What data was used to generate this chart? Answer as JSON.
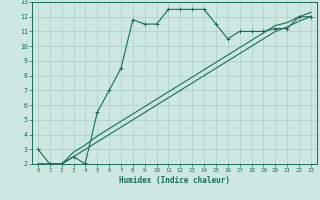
{
  "xlabel": "Humidex (Indice chaleur)",
  "xlim": [
    -0.5,
    23.5
  ],
  "ylim": [
    2,
    13
  ],
  "xticks": [
    0,
    1,
    2,
    3,
    4,
    5,
    6,
    7,
    8,
    9,
    10,
    11,
    12,
    13,
    14,
    15,
    16,
    17,
    18,
    19,
    20,
    21,
    22,
    23
  ],
  "yticks": [
    2,
    3,
    4,
    5,
    6,
    7,
    8,
    9,
    10,
    11,
    12,
    13
  ],
  "bg_color": "#cce8e0",
  "line_color": "#1a6b5c",
  "grid_color": "#aacfc7",
  "line1_x": [
    0,
    1,
    2,
    3,
    4,
    4,
    5,
    6,
    7,
    8,
    9,
    10,
    11,
    12,
    13,
    14,
    15,
    16,
    17,
    18,
    19,
    20,
    21,
    22,
    23
  ],
  "line1_y": [
    3.0,
    2.0,
    2.0,
    2.5,
    2.0,
    2.1,
    5.5,
    7.0,
    8.5,
    11.8,
    11.5,
    11.5,
    12.5,
    12.5,
    12.5,
    12.5,
    11.5,
    10.5,
    11.0,
    11.0,
    11.0,
    11.2,
    11.2,
    12.0,
    12.0
  ],
  "line2_x": [
    0,
    1,
    2,
    3,
    4,
    5,
    6,
    7,
    8,
    9,
    10,
    11,
    12,
    13,
    14,
    15,
    16,
    17,
    18,
    19,
    20,
    21,
    22,
    23
  ],
  "line2_y": [
    2.0,
    2.0,
    2.0,
    2.5,
    3.0,
    3.5,
    4.0,
    4.5,
    5.0,
    5.5,
    6.0,
    6.5,
    7.0,
    7.5,
    8.0,
    8.5,
    9.0,
    9.5,
    10.0,
    10.5,
    11.0,
    11.3,
    11.7,
    12.0
  ],
  "line3_x": [
    0,
    1,
    2,
    3,
    4,
    5,
    6,
    7,
    8,
    9,
    10,
    11,
    12,
    13,
    14,
    15,
    16,
    17,
    18,
    19,
    20,
    21,
    22,
    23
  ],
  "line3_y": [
    2.0,
    2.0,
    2.0,
    2.8,
    3.3,
    3.9,
    4.4,
    4.9,
    5.4,
    5.9,
    6.4,
    6.9,
    7.4,
    7.9,
    8.4,
    8.9,
    9.4,
    9.9,
    10.4,
    10.9,
    11.4,
    11.6,
    12.0,
    12.3
  ]
}
